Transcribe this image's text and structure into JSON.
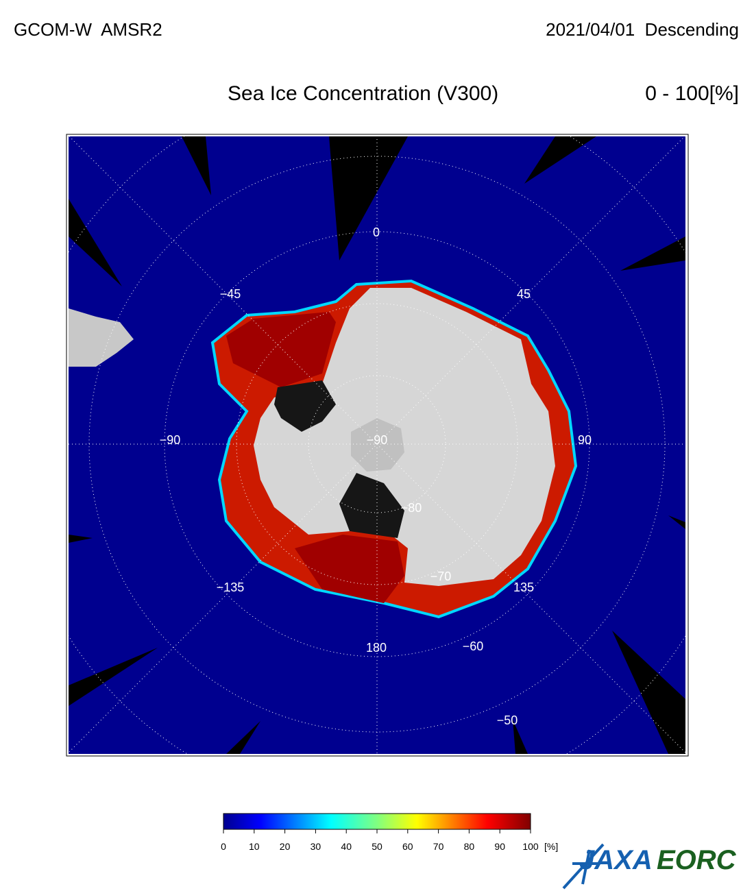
{
  "header": {
    "satellite": "GCOM-W  AMSR2",
    "date": "2021/04/01  Descending",
    "title": "Sea Ice Concentration (V300)",
    "range": "0 - 100[%]"
  },
  "map": {
    "longitude_labels": [
      "0",
      "45",
      "90",
      "135",
      "180",
      "−135",
      "−90",
      "−45"
    ],
    "latitude_labels": [
      "−90",
      "−80",
      "−70",
      "−60",
      "−50"
    ]
  },
  "colorbar": {
    "ticks": [
      0,
      10,
      20,
      30,
      40,
      50,
      60,
      70,
      80,
      90,
      100
    ],
    "unit": "[%]"
  },
  "logo": {
    "jaxa": "JAXA",
    "eorc": "EORC"
  }
}
